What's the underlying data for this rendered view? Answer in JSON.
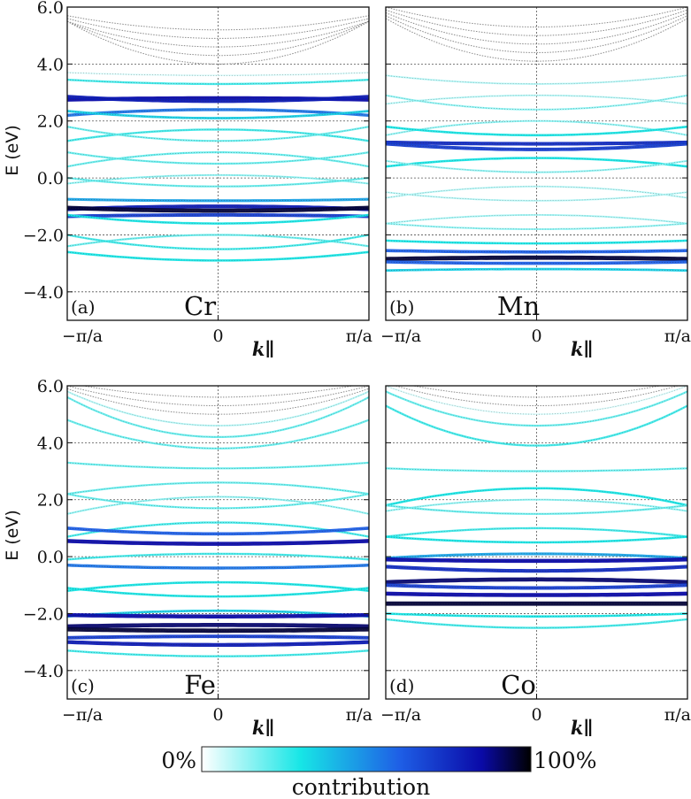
{
  "chart_data": [
    {
      "type": "line",
      "panel_label": "(a)",
      "element": "Cr",
      "ylabel": "E (eV)",
      "xlabel": "k∥",
      "x_ticks": [
        "−π/a",
        "0",
        "π/a"
      ],
      "y_ticks": [
        "6.0",
        "4.0",
        "2.0",
        "0.0",
        "−2.0",
        "−4.0"
      ],
      "ylim": [
        -5.0,
        6.0
      ],
      "xlim": [
        -1,
        1
      ],
      "grid": true,
      "series": [
        {
          "e0": 5.2,
          "w": 0.5,
          "contrib": 0.0
        },
        {
          "e0": 4.9,
          "w": 0.7,
          "contrib": 0.0
        },
        {
          "e0": 4.6,
          "w": 0.9,
          "contrib": 0.0
        },
        {
          "e0": 4.3,
          "w": 1.2,
          "contrib": 0.0
        },
        {
          "e0": 4.0,
          "w": 1.5,
          "contrib": 0.0
        },
        {
          "e0": 3.6,
          "w": 0.1,
          "contrib": 0.05
        },
        {
          "e0": 3.3,
          "w": 0.15,
          "contrib": 0.25
        },
        {
          "e0": 2.8,
          "w": -0.05,
          "contrib": 0.85
        },
        {
          "e0": 2.7,
          "w": 0.15,
          "contrib": 0.8
        },
        {
          "e0": 2.4,
          "w": -0.2,
          "contrib": 0.55
        },
        {
          "e0": 2.1,
          "w": 0.25,
          "contrib": 0.35
        },
        {
          "e0": 1.7,
          "w": -0.4,
          "contrib": 0.25
        },
        {
          "e0": 1.3,
          "w": 0.5,
          "contrib": 0.2
        },
        {
          "e0": 0.9,
          "w": -0.5,
          "contrib": 0.2
        },
        {
          "e0": 0.5,
          "w": 0.4,
          "contrib": 0.2
        },
        {
          "e0": 0.1,
          "w": -0.3,
          "contrib": 0.15
        },
        {
          "e0": -0.3,
          "w": 0.3,
          "contrib": 0.2
        },
        {
          "e0": -0.8,
          "w": 0.05,
          "contrib": 0.45
        },
        {
          "e0": -1.0,
          "w": -0.1,
          "contrib": 0.8
        },
        {
          "e0": -1.15,
          "w": 0.1,
          "contrib": 0.95
        },
        {
          "e0": -1.3,
          "w": -0.05,
          "contrib": 0.7
        },
        {
          "e0": -1.6,
          "w": 0.3,
          "contrib": 0.3
        },
        {
          "e0": -2.0,
          "w": -0.4,
          "contrib": 0.2
        },
        {
          "e0": -2.5,
          "w": 0.5,
          "contrib": 0.25
        },
        {
          "e0": -2.9,
          "w": 0.3,
          "contrib": 0.3
        }
      ]
    },
    {
      "type": "line",
      "panel_label": "(b)",
      "element": "Mn",
      "ylabel": "",
      "xlabel": "k∥",
      "x_ticks": [
        "−π/a",
        "0",
        "π/a"
      ],
      "y_ticks": [],
      "ylim": [
        -5.0,
        6.0
      ],
      "xlim": [
        -1,
        1
      ],
      "grid": true,
      "series": [
        {
          "e0": 5.3,
          "w": 0.7,
          "contrib": 0.0
        },
        {
          "e0": 5.0,
          "w": 0.9,
          "contrib": 0.0
        },
        {
          "e0": 4.7,
          "w": 1.1,
          "contrib": 0.0
        },
        {
          "e0": 4.4,
          "w": 1.3,
          "contrib": 0.0
        },
        {
          "e0": 4.1,
          "w": 1.5,
          "contrib": 0.02
        },
        {
          "e0": 3.3,
          "w": 0.3,
          "contrib": 0.1
        },
        {
          "e0": 2.9,
          "w": -0.3,
          "contrib": 0.1
        },
        {
          "e0": 2.4,
          "w": 0.5,
          "contrib": 0.15
        },
        {
          "e0": 2.0,
          "w": -0.5,
          "contrib": 0.15
        },
        {
          "e0": 1.5,
          "w": 0.3,
          "contrib": 0.3
        },
        {
          "e0": 1.2,
          "w": 0.05,
          "contrib": 0.75
        },
        {
          "e0": 1.0,
          "w": 0.2,
          "contrib": 0.7
        },
        {
          "e0": 0.7,
          "w": -0.3,
          "contrib": 0.3
        },
        {
          "e0": 0.2,
          "w": 0.4,
          "contrib": 0.15
        },
        {
          "e0": -0.3,
          "w": -0.4,
          "contrib": 0.1
        },
        {
          "e0": -0.8,
          "w": 0.3,
          "contrib": 0.1
        },
        {
          "e0": -1.3,
          "w": -0.3,
          "contrib": 0.12
        },
        {
          "e0": -1.8,
          "w": 0.2,
          "contrib": 0.15
        },
        {
          "e0": -2.3,
          "w": 0.1,
          "contrib": 0.3
        },
        {
          "e0": -2.6,
          "w": 0.05,
          "contrib": 0.6
        },
        {
          "e0": -2.8,
          "w": -0.05,
          "contrib": 0.95
        },
        {
          "e0": -3.0,
          "w": 0.05,
          "contrib": 0.6
        },
        {
          "e0": -3.2,
          "w": -0.05,
          "contrib": 0.35
        }
      ]
    },
    {
      "type": "line",
      "panel_label": "(c)",
      "element": "Fe",
      "ylabel": "E (eV)",
      "xlabel": "k∥",
      "x_ticks": [
        "−π/a",
        "0",
        "π/a"
      ],
      "y_ticks": [
        "6.0",
        "4.0",
        "2.0",
        "0.0",
        "−2.0",
        "−4.0"
      ],
      "ylim": [
        -5.0,
        6.0
      ],
      "xlim": [
        -1,
        1
      ],
      "grid": true,
      "series": [
        {
          "e0": 5.6,
          "w": 0.5,
          "contrib": 0.0
        },
        {
          "e0": 5.3,
          "w": 0.7,
          "contrib": 0.0
        },
        {
          "e0": 5.0,
          "w": 0.9,
          "contrib": 0.02
        },
        {
          "e0": 4.6,
          "w": 1.2,
          "contrib": 0.1
        },
        {
          "e0": 4.2,
          "w": 1.4,
          "contrib": 0.2
        },
        {
          "e0": 3.8,
          "w": 1.0,
          "contrib": 0.2
        },
        {
          "e0": 3.1,
          "w": 0.2,
          "contrib": 0.2
        },
        {
          "e0": 2.6,
          "w": -0.4,
          "contrib": 0.2
        },
        {
          "e0": 2.1,
          "w": -0.6,
          "contrib": 0.15
        },
        {
          "e0": 1.7,
          "w": 0.5,
          "contrib": 0.2
        },
        {
          "e0": 1.2,
          "w": -0.5,
          "contrib": 0.25
        },
        {
          "e0": 0.8,
          "w": 0.2,
          "contrib": 0.6
        },
        {
          "e0": 0.45,
          "w": 0.1,
          "contrib": 0.85
        },
        {
          "e0": 0.1,
          "w": -0.2,
          "contrib": 0.25
        },
        {
          "e0": -0.4,
          "w": 0.1,
          "contrib": 0.55
        },
        {
          "e0": -0.9,
          "w": -0.3,
          "contrib": 0.3
        },
        {
          "e0": -1.4,
          "w": 0.3,
          "contrib": 0.3
        },
        {
          "e0": -1.9,
          "w": -0.2,
          "contrib": 0.35
        },
        {
          "e0": -2.1,
          "w": 0.05,
          "contrib": 0.85
        },
        {
          "e0": -2.4,
          "w": -0.05,
          "contrib": 0.9
        },
        {
          "e0": -2.6,
          "w": 0.05,
          "contrib": 0.95
        },
        {
          "e0": -2.8,
          "w": -0.05,
          "contrib": 0.7
        },
        {
          "e0": -3.1,
          "w": 0.1,
          "contrib": 0.8
        },
        {
          "e0": -3.5,
          "w": 0.2,
          "contrib": 0.25
        }
      ]
    },
    {
      "type": "line",
      "panel_label": "(d)",
      "element": "Co",
      "ylabel": "",
      "xlabel": "k∥",
      "x_ticks": [
        "−π/a",
        "0",
        "π/a"
      ],
      "y_ticks": [],
      "ylim": [
        -5.0,
        6.0
      ],
      "xlim": [
        -1,
        1
      ],
      "grid": true,
      "series": [
        {
          "e0": 5.6,
          "w": 0.6,
          "contrib": 0.0
        },
        {
          "e0": 5.3,
          "w": 0.8,
          "contrib": 0.0
        },
        {
          "e0": 5.0,
          "w": 1.0,
          "contrib": 0.05
        },
        {
          "e0": 4.6,
          "w": 1.2,
          "contrib": 0.2
        },
        {
          "e0": 3.9,
          "w": 1.4,
          "contrib": 0.25
        },
        {
          "e0": 3.0,
          "w": 0.1,
          "contrib": 0.2
        },
        {
          "e0": 2.4,
          "w": -0.6,
          "contrib": 0.3
        },
        {
          "e0": 2.0,
          "w": -0.4,
          "contrib": 0.15
        },
        {
          "e0": 1.5,
          "w": 0.3,
          "contrib": 0.2
        },
        {
          "e0": 1.0,
          "w": -0.3,
          "contrib": 0.25
        },
        {
          "e0": 0.5,
          "w": 0.2,
          "contrib": 0.3
        },
        {
          "e0": 0.1,
          "w": -0.15,
          "contrib": 0.45
        },
        {
          "e0": -0.15,
          "w": 0.05,
          "contrib": 0.85
        },
        {
          "e0": -0.5,
          "w": 0.15,
          "contrib": 0.75
        },
        {
          "e0": -0.8,
          "w": -0.1,
          "contrib": 0.9
        },
        {
          "e0": -1.1,
          "w": 0.1,
          "contrib": 0.7
        },
        {
          "e0": -1.35,
          "w": 0.05,
          "contrib": 0.85
        },
        {
          "e0": -1.65,
          "w": 0.0,
          "contrib": 0.95
        },
        {
          "e0": -2.1,
          "w": 0.1,
          "contrib": 0.3
        },
        {
          "e0": -2.5,
          "w": 0.3,
          "contrib": 0.25
        }
      ]
    }
  ],
  "colorbar": {
    "min_label": "0%",
    "max_label": "100%",
    "label": "contribution",
    "colors": [
      "#ffffff",
      "#17e6e6",
      "#1e5fe6",
      "#0a0aa8",
      "#000000"
    ]
  },
  "colors": {
    "gray_band": "#8a8a8a",
    "grid": "#555555"
  }
}
